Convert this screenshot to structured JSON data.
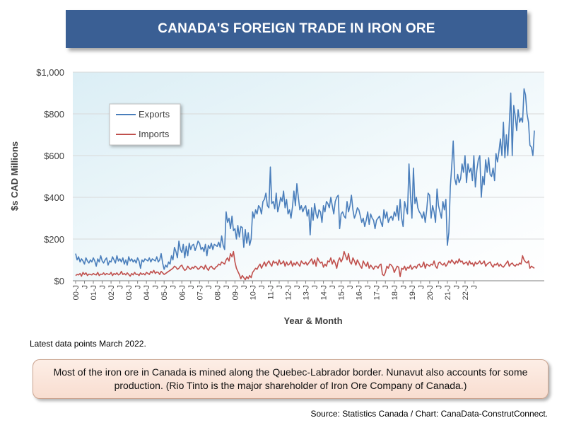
{
  "header": {
    "title": "CANADA'S FOREIGN TRADE IN IRON ORE"
  },
  "footer": {
    "latest_note": "Latest data points March 2022.",
    "callout": "Most of the iron ore in Canada is mined along the Quebec-Labrador border. Nunavut also accounts for some production. (Rio Tinto is the major shareholder of Iron Ore Company of Canada.)",
    "source": "Source: Statistics Canada / Chart: CanaData-ConstrutConnect."
  },
  "chart_data": {
    "type": "line",
    "xlabel": "Year & Month",
    "ylabel": "$s CAD Millions",
    "ylim": [
      0,
      1000
    ],
    "yticks": [
      0,
      200,
      400,
      600,
      800,
      1000
    ],
    "ytick_labels": [
      "$0",
      "$200",
      "$400",
      "$600",
      "$800",
      "$1,000"
    ],
    "x_start": "2000-01",
    "x_end": "2022-03",
    "xtick_labels": [
      "00-J",
      "J",
      "01-J",
      "J",
      "02-J",
      "J",
      "03-J",
      "J",
      "04-J",
      "J",
      "05-J",
      "J",
      "06-J",
      "J",
      "07-J",
      "J",
      "08-J",
      "J",
      "09-J",
      "J",
      "10-J",
      "J",
      "11-J",
      "J",
      "12-J",
      "J",
      "13-J",
      "J",
      "14-J",
      "J",
      "15-J",
      "J",
      "16-J",
      "J",
      "17-J",
      "J",
      "18-J",
      "J",
      "19-J",
      "J",
      "20-J",
      "J",
      "21-J",
      "J",
      "22-J",
      "J"
    ],
    "legend": {
      "position": "top-left inset"
    },
    "grid": {
      "horizontal": true,
      "vertical": false
    },
    "series": [
      {
        "name": "Exports",
        "color": "#4a7ebb",
        "values": [
          130,
          100,
          115,
          90,
          105,
          95,
          80,
          110,
          95,
          85,
          100,
          90,
          110,
          95,
          70,
          105,
          90,
          120,
          95,
          85,
          100,
          110,
          75,
          95,
          90,
          115,
          100,
          85,
          120,
          95,
          105,
          90,
          110,
          80,
          100,
          75,
          115,
          95,
          105,
          90,
          100,
          85,
          110,
          95,
          60,
          100,
          90,
          105,
          100,
          95,
          110,
          90,
          105,
          100,
          95,
          115,
          90,
          100,
          130,
          85,
          55,
          75,
          65,
          90,
          80,
          120,
          100,
          160,
          140,
          110,
          190,
          150,
          135,
          175,
          110,
          165,
          120,
          180,
          150,
          170,
          175,
          145,
          165,
          190,
          180,
          150,
          160,
          140,
          175,
          120,
          170,
          155,
          180,
          150,
          175,
          170,
          165,
          185,
          160,
          215,
          170,
          150,
          330,
          280,
          300,
          250,
          310,
          240,
          250,
          200,
          265,
          210,
          260,
          255,
          160,
          245,
          180,
          230,
          170,
          200,
          330,
          300,
          340,
          320,
          360,
          350,
          320,
          380,
          390,
          420,
          360,
          350,
          545,
          370,
          380,
          345,
          420,
          330,
          360,
          400,
          380,
          430,
          350,
          390,
          320,
          340,
          300,
          355,
          430,
          360,
          465,
          400,
          340,
          360,
          330,
          350,
          360,
          310,
          340,
          220,
          350,
          290,
          370,
          320,
          300,
          340,
          330,
          280,
          360,
          330,
          380,
          370,
          350,
          400,
          360,
          320,
          380,
          400,
          410,
          250,
          320,
          330,
          310,
          300,
          380,
          330,
          360,
          410,
          340,
          300,
          320,
          350,
          340,
          310,
          280,
          300,
          260,
          290,
          330,
          270,
          320,
          300,
          290,
          250,
          290,
          300,
          310,
          280,
          260,
          340,
          300,
          330,
          280,
          300,
          310,
          290,
          330,
          310,
          360,
          290,
          390,
          300,
          260,
          380,
          350,
          320,
          560,
          410,
          300,
          540,
          370,
          400,
          350,
          330,
          320,
          300,
          330,
          280,
          340,
          420,
          410,
          300,
          360,
          330,
          280,
          440,
          360,
          330,
          300,
          380,
          340,
          390,
          170,
          230,
          450,
          550,
          670,
          490,
          460,
          510,
          470,
          490,
          560,
          520,
          600,
          470,
          560,
          520,
          540,
          480,
          600,
          450,
          530,
          580,
          600,
          400,
          500,
          460,
          580,
          520,
          590,
          510,
          500,
          540,
          480,
          610,
          570,
          620,
          680,
          600,
          760,
          590,
          700,
          600,
          750,
          900,
          600,
          840,
          790,
          720,
          820,
          760,
          780,
          760,
          920,
          890,
          800,
          760,
          650,
          640,
          600,
          720
        ]
      },
      {
        "name": "Imports",
        "color": "#c0504d",
        "values": [
          25,
          30,
          28,
          35,
          22,
          40,
          30,
          38,
          25,
          32,
          30,
          28,
          35,
          30,
          28,
          40,
          25,
          32,
          30,
          38,
          28,
          35,
          32,
          30,
          40,
          25,
          35,
          30,
          38,
          28,
          32,
          45,
          30,
          35,
          28,
          38,
          30,
          22,
          35,
          28,
          40,
          30,
          32,
          25,
          38,
          30,
          35,
          28,
          40,
          35,
          30,
          45,
          38,
          50,
          35,
          42,
          40,
          30,
          45,
          38,
          30,
          35,
          40,
          45,
          50,
          55,
          60,
          70,
          65,
          55,
          60,
          70,
          75,
          60,
          50,
          55,
          70,
          60,
          55,
          65,
          60,
          70,
          65,
          55,
          60,
          70,
          65,
          55,
          75,
          60,
          50,
          65,
          70,
          60,
          55,
          65,
          70,
          80,
          75,
          90,
          85,
          80,
          100,
          110,
          95,
          130,
          115,
          140,
          90,
          60,
          45,
          30,
          10,
          25,
          15,
          5,
          20,
          10,
          25,
          15,
          40,
          50,
          60,
          55,
          70,
          80,
          60,
          75,
          90,
          70,
          85,
          95,
          80,
          70,
          95,
          85,
          90,
          75,
          100,
          80,
          85,
          95,
          70,
          90,
          75,
          80,
          95,
          70,
          85,
          75,
          90,
          80,
          70,
          95,
          85,
          80,
          90,
          75,
          85,
          95,
          105,
          80,
          100,
          70,
          110,
          95,
          85,
          90,
          65,
          80,
          70,
          95,
          90,
          110,
          80,
          100,
          85,
          60,
          95,
          110,
          90,
          105,
          140,
          120,
          100,
          130,
          90,
          80,
          110,
          95,
          75,
          100,
          85,
          70,
          60,
          95,
          80,
          70,
          90,
          60,
          75,
          65,
          55,
          70,
          70,
          60,
          75,
          80,
          30,
          25,
          40,
          70,
          60,
          80,
          75,
          65,
          40,
          55,
          70,
          65,
          20,
          60,
          55,
          70,
          50,
          65,
          60,
          75,
          55,
          65,
          70,
          60,
          75,
          80,
          65,
          70,
          90,
          60,
          80,
          75,
          70,
          80,
          75,
          95,
          70,
          60,
          85,
          90,
          80,
          75,
          85,
          70,
          80,
          95,
          85,
          100,
          90,
          80,
          95,
          85,
          105,
          90,
          95,
          80,
          85,
          90,
          75,
          95,
          80,
          85,
          70,
          90,
          80,
          85,
          95,
          80,
          85,
          95,
          70,
          80,
          85,
          90,
          75,
          65,
          80,
          75,
          85,
          70,
          80,
          70,
          65,
          75,
          85,
          95,
          70,
          80,
          85,
          75,
          70,
          80,
          75,
          85,
          80,
          120,
          100,
          90,
          85,
          95,
          60,
          70,
          65,
          60
        ]
      }
    ]
  }
}
